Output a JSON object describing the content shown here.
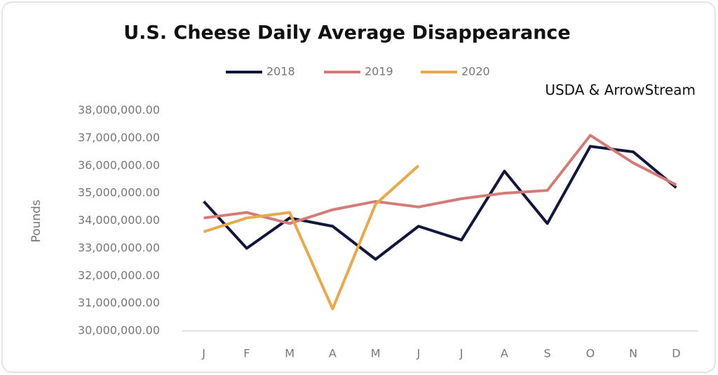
{
  "chart_data": {
    "type": "line",
    "title": "U.S. Cheese Daily Average Disappearance",
    "annotation": "USDA & ArrowStream",
    "ylabel": "Pounds",
    "categories": [
      "J",
      "F",
      "M",
      "A",
      "M",
      "J",
      "J",
      "A",
      "S",
      "O",
      "N",
      "D"
    ],
    "series": [
      {
        "name": "2018",
        "color": "#12163a",
        "values": [
          34700000,
          33000000,
          34100000,
          33800000,
          32600000,
          33800000,
          33300000,
          35800000,
          33900000,
          36700000,
          36500000,
          35200000
        ]
      },
      {
        "name": "2019",
        "color": "#d37b78",
        "values": [
          34100000,
          34300000,
          33900000,
          34400000,
          34700000,
          34500000,
          34800000,
          35000000,
          35100000,
          37100000,
          36100000,
          35300000
        ]
      },
      {
        "name": "2020",
        "color": "#e8a94a",
        "values": [
          33600000,
          34100000,
          34300000,
          30800000,
          34600000,
          36000000,
          null,
          null,
          null,
          null,
          null,
          null
        ]
      }
    ],
    "ylim": [
      30000000,
      38000000
    ],
    "yticks": [
      {
        "value": 30000000,
        "label": "30,000,000.00"
      },
      {
        "value": 31000000,
        "label": "31,000,000.00"
      },
      {
        "value": 32000000,
        "label": "32,000,000.00"
      },
      {
        "value": 33000000,
        "label": "33,000,000.00"
      },
      {
        "value": 34000000,
        "label": "34,000,000.00"
      },
      {
        "value": 35000000,
        "label": "35,000,000.00"
      },
      {
        "value": 36000000,
        "label": "36,000,000.00"
      },
      {
        "value": 37000000,
        "label": "37,000,000.00"
      },
      {
        "value": 38000000,
        "label": "38,000,000.00"
      }
    ],
    "grid": false,
    "legend": "top"
  }
}
